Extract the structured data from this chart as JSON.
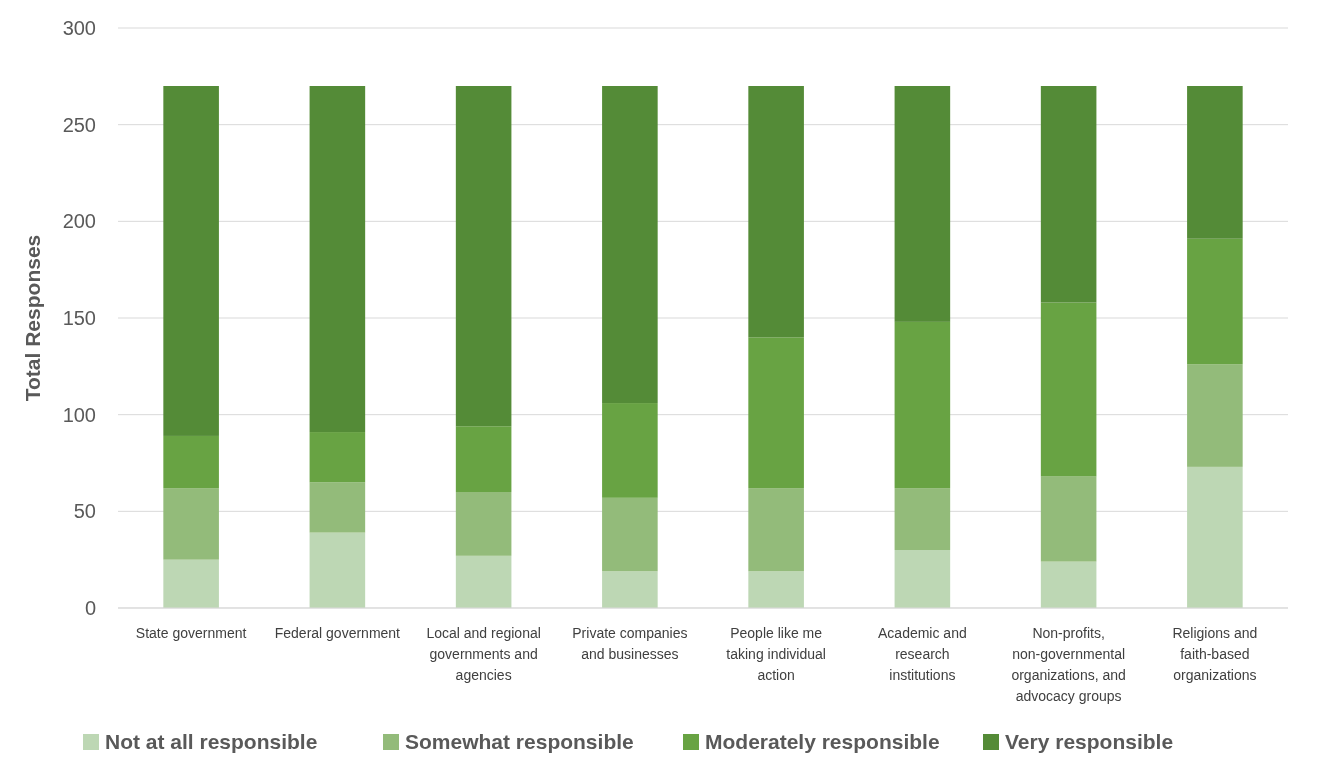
{
  "chart_data": {
    "type": "bar",
    "stacked": true,
    "ylabel": "Total Responses",
    "categories": [
      "State government",
      "Federal government",
      "Local and regional governments and agencies",
      "Private companies and businesses",
      "People like me taking individual action",
      "Academic and research institutions",
      "Non-profits, non-governmental organizations, and advocacy groups",
      "Religions and faith-based organizations"
    ],
    "series": [
      {
        "name": "Not at all responsible",
        "color": "#bdd7b4",
        "values": [
          25,
          39,
          27,
          19,
          19,
          30,
          24,
          73
        ]
      },
      {
        "name": "Somewhat responsible",
        "color": "#93bb7a",
        "values": [
          37,
          26,
          33,
          38,
          43,
          32,
          44,
          53
        ]
      },
      {
        "name": "Moderately responsible",
        "color": "#68a343",
        "values": [
          27,
          26,
          34,
          49,
          78,
          86,
          90,
          65
        ]
      },
      {
        "name": "Very responsible",
        "color": "#548b37",
        "values": [
          181,
          179,
          176,
          164,
          130,
          122,
          112,
          79
        ]
      }
    ],
    "ylim": [
      0,
      300
    ],
    "yticks": [
      0,
      50,
      100,
      150,
      200,
      250,
      300
    ],
    "grid": "y",
    "legend": "bottom"
  }
}
